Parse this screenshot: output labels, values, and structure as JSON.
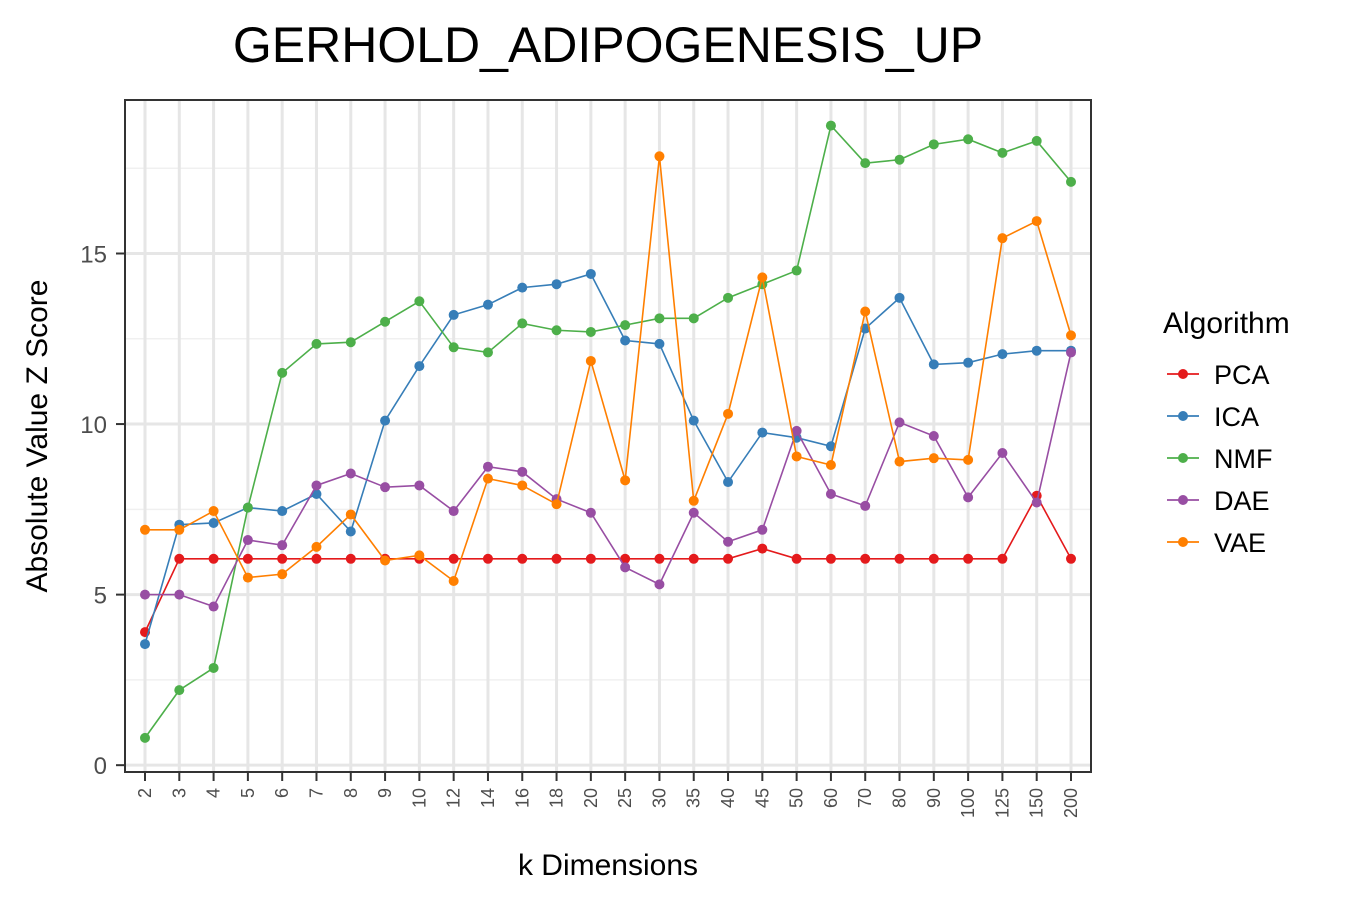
{
  "chart_data": {
    "type": "line",
    "title": "GERHOLD_ADIPOGENESIS_UP",
    "xlabel": "k Dimensions",
    "ylabel": "Absolute Value Z Score",
    "categories": [
      "2",
      "3",
      "4",
      "5",
      "6",
      "7",
      "8",
      "9",
      "10",
      "12",
      "14",
      "16",
      "18",
      "20",
      "25",
      "30",
      "35",
      "40",
      "45",
      "50",
      "60",
      "70",
      "80",
      "90",
      "100",
      "125",
      "150",
      "200"
    ],
    "yticks": [
      0,
      5,
      10,
      15
    ],
    "ylim": [
      -0.2,
      19.5
    ],
    "grid": true,
    "legend": {
      "title": "Algorithm",
      "placement": "right"
    },
    "series": [
      {
        "name": "PCA",
        "color": "#e41a1c",
        "values": [
          3.9,
          6.05,
          6.05,
          6.05,
          6.05,
          6.05,
          6.05,
          6.05,
          6.05,
          6.05,
          6.05,
          6.05,
          6.05,
          6.05,
          6.05,
          6.05,
          6.05,
          6.05,
          6.35,
          6.05,
          6.05,
          6.05,
          6.05,
          6.05,
          6.05,
          6.05,
          7.9,
          6.05
        ]
      },
      {
        "name": "ICA",
        "color": "#377eb8",
        "values": [
          3.55,
          7.05,
          7.1,
          7.55,
          7.45,
          7.95,
          6.85,
          10.1,
          11.7,
          13.2,
          13.5,
          14.0,
          14.1,
          14.4,
          12.45,
          12.35,
          10.1,
          8.3,
          9.75,
          9.6,
          9.35,
          12.8,
          13.7,
          11.75,
          11.8,
          12.05,
          12.15,
          12.15
        ]
      },
      {
        "name": "NMF",
        "color": "#4daf4a",
        "values": [
          0.8,
          2.2,
          2.85,
          7.55,
          11.5,
          12.35,
          12.4,
          13.0,
          13.6,
          12.25,
          12.1,
          12.95,
          12.75,
          12.7,
          12.9,
          13.1,
          13.1,
          13.7,
          14.1,
          14.5,
          18.75,
          17.65,
          17.75,
          18.2,
          18.35,
          17.95,
          18.3,
          17.1
        ]
      },
      {
        "name": "DAE",
        "color": "#984ea3",
        "values": [
          5.0,
          5.0,
          4.65,
          6.6,
          6.45,
          8.2,
          8.55,
          8.15,
          8.2,
          7.45,
          8.75,
          8.6,
          7.8,
          7.4,
          5.8,
          5.3,
          7.4,
          6.55,
          6.9,
          9.8,
          7.95,
          7.6,
          10.05,
          9.65,
          7.85,
          9.15,
          7.7,
          12.1
        ]
      },
      {
        "name": "VAE",
        "color": "#ff7f00",
        "values": [
          6.9,
          6.9,
          7.45,
          5.5,
          5.6,
          6.4,
          7.35,
          6.0,
          6.15,
          5.4,
          8.4,
          8.2,
          7.65,
          11.85,
          8.35,
          17.85,
          7.75,
          10.3,
          14.3,
          9.05,
          8.8,
          13.3,
          8.9,
          9.0,
          8.95,
          15.45,
          15.95,
          12.6
        ]
      }
    ]
  }
}
